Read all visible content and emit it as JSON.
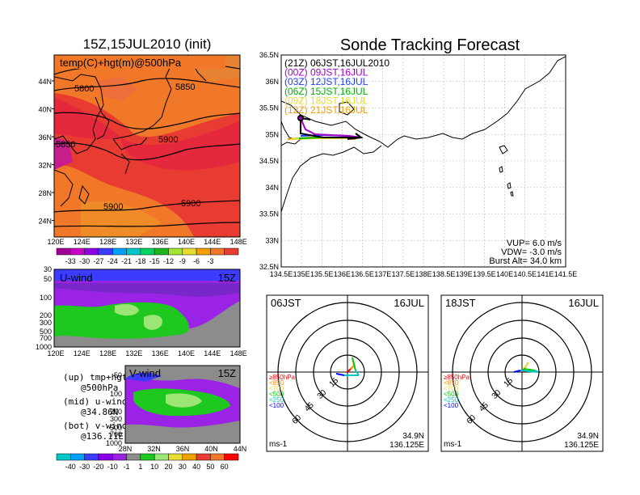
{
  "left_panel": {
    "title": "15Z,15JUL2010 (init)",
    "map_label": "temp(C)+hgt(m)@500hPa",
    "lat_labels": [
      "44N",
      "40N",
      "36N",
      "32N",
      "28N",
      "24N"
    ],
    "lon_labels": [
      "120E",
      "124E",
      "128E",
      "132E",
      "136E",
      "140E",
      "144E",
      "148E"
    ],
    "contour_labels": [
      "5800",
      "5850",
      "5850",
      "5900",
      "5900",
      "5900"
    ],
    "colorbar_labels": [
      "-33",
      "-30",
      "-27",
      "-24",
      "-21",
      "-18",
      "-15",
      "-12",
      "-9",
      "-6",
      "-3"
    ]
  },
  "u_panel": {
    "label": "U-wind",
    "time": "15Z",
    "p_labels": [
      "30",
      "50",
      "100",
      "200",
      "300",
      "500",
      "700",
      "1000"
    ],
    "lon_labels": [
      "120E",
      "124E",
      "128E",
      "132E",
      "136E",
      "140E",
      "144E",
      "148E"
    ]
  },
  "v_panel": {
    "label": "V-wind",
    "time": "15Z",
    "p_labels": [
      "30",
      "50",
      "100",
      "200",
      "300",
      "500",
      "700",
      "1000"
    ],
    "lat_labels": [
      "28N",
      "32N",
      "36N",
      "40N",
      "44N"
    ]
  },
  "legend_notes": [
    {
      "top": "(up) tmp+hgt",
      "bottom": "@500hPa"
    },
    {
      "top": "(mid) u-wind",
      "bottom": "@34.86N"
    },
    {
      "top": "(bot) v-wind",
      "bottom": "@136.11E"
    }
  ],
  "wind_colorbar_labels": [
    "-40",
    "-30",
    "-20",
    "-10",
    "-1",
    "1",
    "10",
    "20",
    "30",
    "40",
    "50",
    "60"
  ],
  "track_panel": {
    "title": "Sonde Tracking Forecast",
    "lat_labels": [
      "36.5N",
      "36N",
      "35.5N",
      "35N",
      "34.5N",
      "34N",
      "33.5N",
      "33N",
      "32.5N"
    ],
    "lon_labels": [
      "134.5E",
      "135E",
      "135.5E",
      "136E",
      "136.5E",
      "137E",
      "137.5E",
      "138E",
      "138.5E",
      "139E",
      "139.5E",
      "140E",
      "140.5E",
      "141E",
      "141.5E"
    ],
    "launches": [
      {
        "text": "(21Z)  06JST,16JUL2010",
        "color": "#000000"
      },
      {
        "text": "(00Z)  09JST,16JUL",
        "color": "#a000c8"
      },
      {
        "text": "(03Z)  12JST,16JUL",
        "color": "#1e3cff"
      },
      {
        "text": "(06Z)  15JST,16JUL",
        "color": "#00b400"
      },
      {
        "text": "(09Z)  18JST,16JUL",
        "color": "#e6dc32"
      },
      {
        "text": "(12Z)  21JST,16JUL",
        "color": "#f0a000"
      }
    ],
    "params": [
      "VUP=  6.0  m/s",
      "VDW= -3.0  m/s",
      "Burst Alt=  34.0  km"
    ]
  },
  "hodographs": [
    {
      "time": "06JST",
      "date": "16JUL",
      "ring_labels": [
        "15",
        "30",
        "45",
        "60"
      ],
      "unit": "ms-1",
      "lat": "34.9N",
      "lon": "136.125E",
      "levels": [
        "≥850hPa",
        "<850",
        "<700",
        "<500",
        "<250",
        "<100"
      ]
    },
    {
      "time": "18JST",
      "date": "16JUL",
      "ring_labels": [
        "15",
        "30",
        "45",
        "60"
      ],
      "unit": "ms-1",
      "lat": "34.9N",
      "lon": "136.125E",
      "levels": [
        "≥850hPa",
        "<850",
        "<700",
        "<500",
        "<250",
        "<100"
      ]
    }
  ],
  "level_colors": [
    "#ff0000",
    "#ff8c00",
    "#e6dc32",
    "#00c800",
    "#00c8c8",
    "#0000ff"
  ]
}
